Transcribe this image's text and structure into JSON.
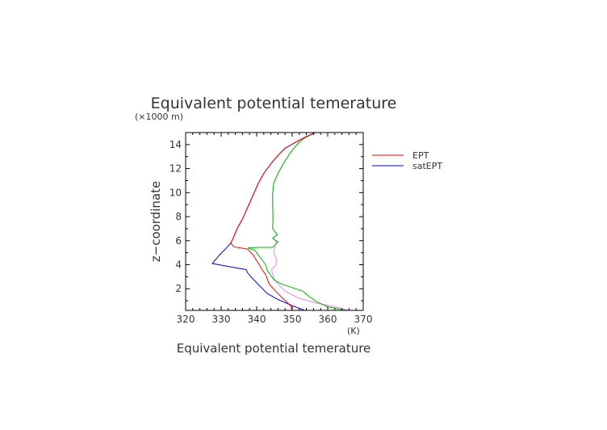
{
  "chart_data": {
    "type": "line",
    "title": "Equivalent potential temerature",
    "xlabel": "Equivalent potential temerature",
    "x_unit": "(K)",
    "ylabel": "z−coordinate",
    "y_unit": "(×1000 m)",
    "xlim": [
      320,
      370
    ],
    "ylim": [
      0.2,
      15
    ],
    "xticks": [
      320,
      330,
      340,
      350,
      360,
      370
    ],
    "yticks": [
      2,
      4,
      6,
      8,
      10,
      12,
      14
    ],
    "legend_placement": "right",
    "grid": false,
    "series": [
      {
        "name": "EPT",
        "color": "#ff0000",
        "points": [
          [
            350,
            0.2
          ],
          [
            349.5,
            0.6
          ],
          [
            347,
            1.3
          ],
          [
            345,
            1.9
          ],
          [
            343.5,
            2.4
          ],
          [
            343,
            2.8
          ],
          [
            342.5,
            3.2
          ],
          [
            341.5,
            3.6
          ],
          [
            340.5,
            4.1
          ],
          [
            339,
            4.8
          ],
          [
            337.5,
            5.3
          ],
          [
            335.5,
            5.4
          ],
          [
            333.5,
            5.5
          ],
          [
            332.7,
            5.8
          ],
          [
            333.5,
            6.3
          ],
          [
            334.5,
            7
          ],
          [
            336,
            7.8
          ],
          [
            337.5,
            8.8
          ],
          [
            339,
            9.8
          ],
          [
            340.5,
            10.8
          ],
          [
            342,
            11.6
          ],
          [
            344,
            12.4
          ],
          [
            346,
            13.1
          ],
          [
            348,
            13.7
          ],
          [
            351,
            14.2
          ],
          [
            353.5,
            14.6
          ],
          [
            356.5,
            15.0
          ]
        ]
      },
      {
        "name": "satEPT",
        "color": "#0000cc",
        "points": [
          [
            353.5,
            0.2
          ],
          [
            350,
            0.6
          ],
          [
            346,
            1.1
          ],
          [
            343,
            1.6
          ],
          [
            341,
            2.2
          ],
          [
            339,
            2.8
          ],
          [
            337.5,
            3.3
          ],
          [
            337,
            3.6
          ],
          [
            333,
            3.8
          ],
          [
            327.5,
            4.1
          ],
          [
            329.5,
            4.8
          ],
          [
            331.5,
            5.4
          ],
          [
            332.7,
            5.8
          ],
          [
            333.5,
            6.3
          ],
          [
            334.5,
            7
          ],
          [
            336,
            7.8
          ],
          [
            337.5,
            8.8
          ],
          [
            339,
            9.8
          ],
          [
            340.5,
            10.8
          ],
          [
            342,
            11.6
          ],
          [
            344,
            12.4
          ],
          [
            346,
            13.1
          ],
          [
            348,
            13.7
          ],
          [
            351,
            14.2
          ],
          [
            353.5,
            14.6
          ],
          [
            356.5,
            15.0
          ]
        ]
      },
      {
        "color": "#00bb00",
        "points": [
          [
            365,
            0.2
          ],
          [
            360,
            0.5
          ],
          [
            357,
            0.9
          ],
          [
            355,
            1.3
          ],
          [
            353,
            1.8
          ],
          [
            350,
            2.1
          ],
          [
            347,
            2.4
          ],
          [
            345,
            2.7
          ],
          [
            344,
            3.1
          ],
          [
            343,
            3.5
          ],
          [
            342.5,
            4.0
          ],
          [
            341,
            4.6
          ],
          [
            339.5,
            5.2
          ],
          [
            337.5,
            5.4
          ],
          [
            341,
            5.45
          ],
          [
            344.5,
            5.45
          ],
          [
            346,
            5.9
          ],
          [
            344.5,
            6.2
          ],
          [
            345.8,
            6.5
          ],
          [
            344.5,
            7.0
          ],
          [
            344.6,
            8
          ],
          [
            344.5,
            9
          ],
          [
            344.5,
            10
          ],
          [
            344.8,
            10.8
          ],
          [
            346,
            11.6
          ],
          [
            347.5,
            12.4
          ],
          [
            349,
            13.1
          ],
          [
            350.5,
            13.7
          ],
          [
            352,
            14.2
          ],
          [
            353.8,
            14.6
          ],
          [
            356.5,
            15.0
          ]
        ]
      },
      {
        "color": "#ee88ee",
        "points": [
          [
            366,
            0.2
          ],
          [
            362,
            0.5
          ],
          [
            357,
            0.8
          ],
          [
            352,
            1.2
          ],
          [
            348,
            1.8
          ],
          [
            346,
            2.4
          ],
          [
            345,
            2.8
          ],
          [
            344.5,
            3.2
          ],
          [
            344.2,
            3.6
          ],
          [
            345.5,
            4.0
          ],
          [
            345.5,
            4.5
          ],
          [
            344.8,
            5.0
          ],
          [
            345,
            5.4
          ],
          [
            345.5,
            5.9
          ],
          [
            344.5,
            6.2
          ],
          [
            345.8,
            6.5
          ],
          [
            344.5,
            7.0
          ],
          [
            344.6,
            8
          ],
          [
            344.5,
            9
          ],
          [
            344.5,
            10
          ],
          [
            344.8,
            10.8
          ],
          [
            346,
            11.6
          ],
          [
            347.5,
            12.4
          ],
          [
            349,
            13.1
          ],
          [
            350.5,
            13.7
          ],
          [
            352,
            14.2
          ],
          [
            353.8,
            14.6
          ],
          [
            356.5,
            15.0
          ]
        ]
      }
    ]
  }
}
